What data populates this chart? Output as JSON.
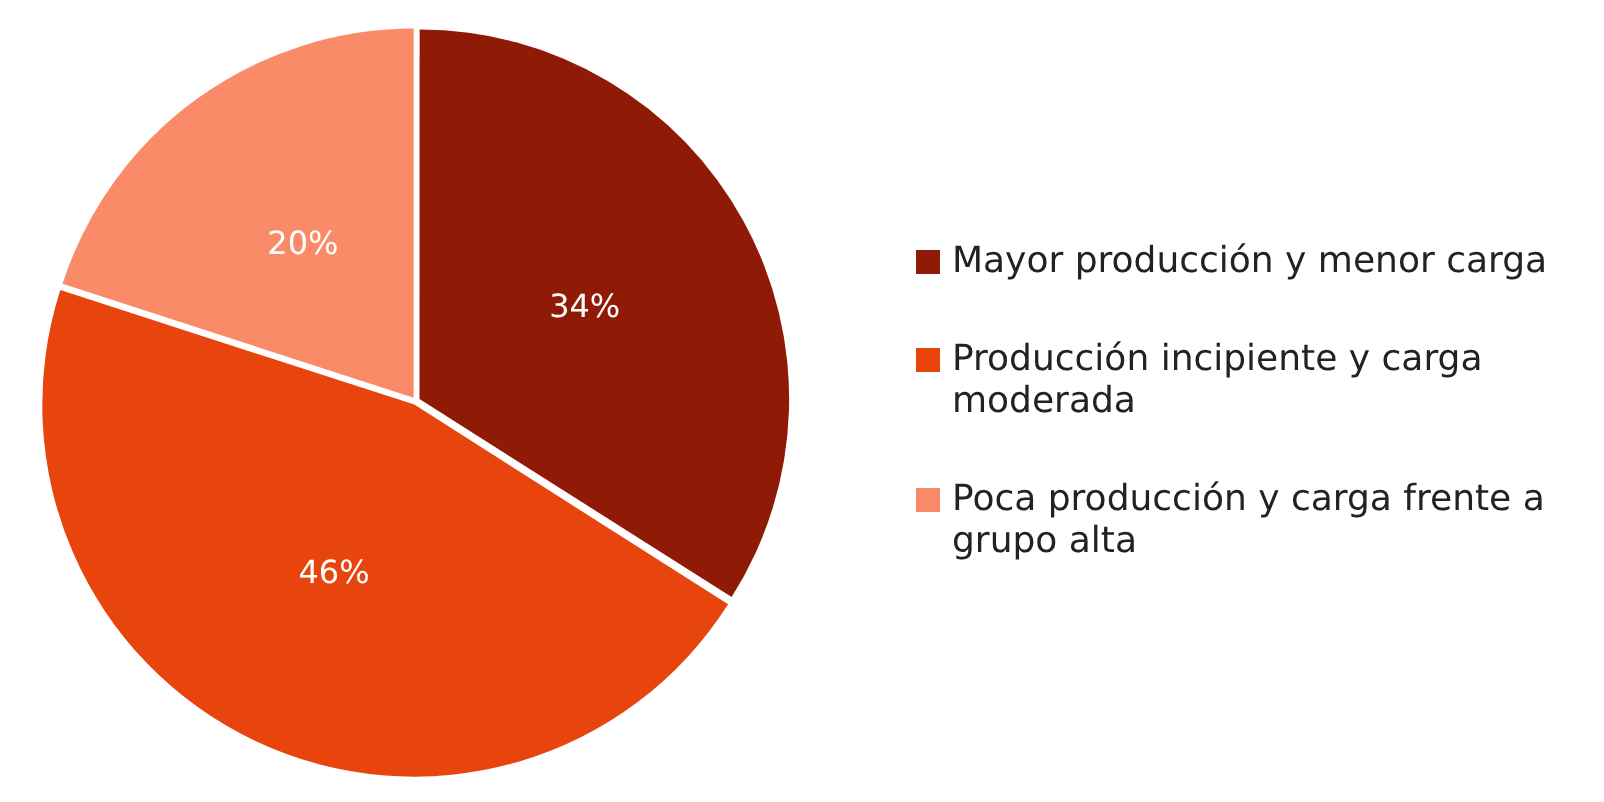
{
  "chart_data": {
    "type": "pie",
    "categories": [
      "Mayor producción y menor carga",
      "Producción incipiente y carga moderada",
      "Poca producción y carga frente a grupo alta"
    ],
    "values": [
      34,
      46,
      20
    ],
    "colors": [
      "#8f1a06",
      "#e8450e",
      "#f98b68"
    ],
    "value_labels": [
      "34%",
      "46%",
      "20%"
    ],
    "legend": "right"
  }
}
